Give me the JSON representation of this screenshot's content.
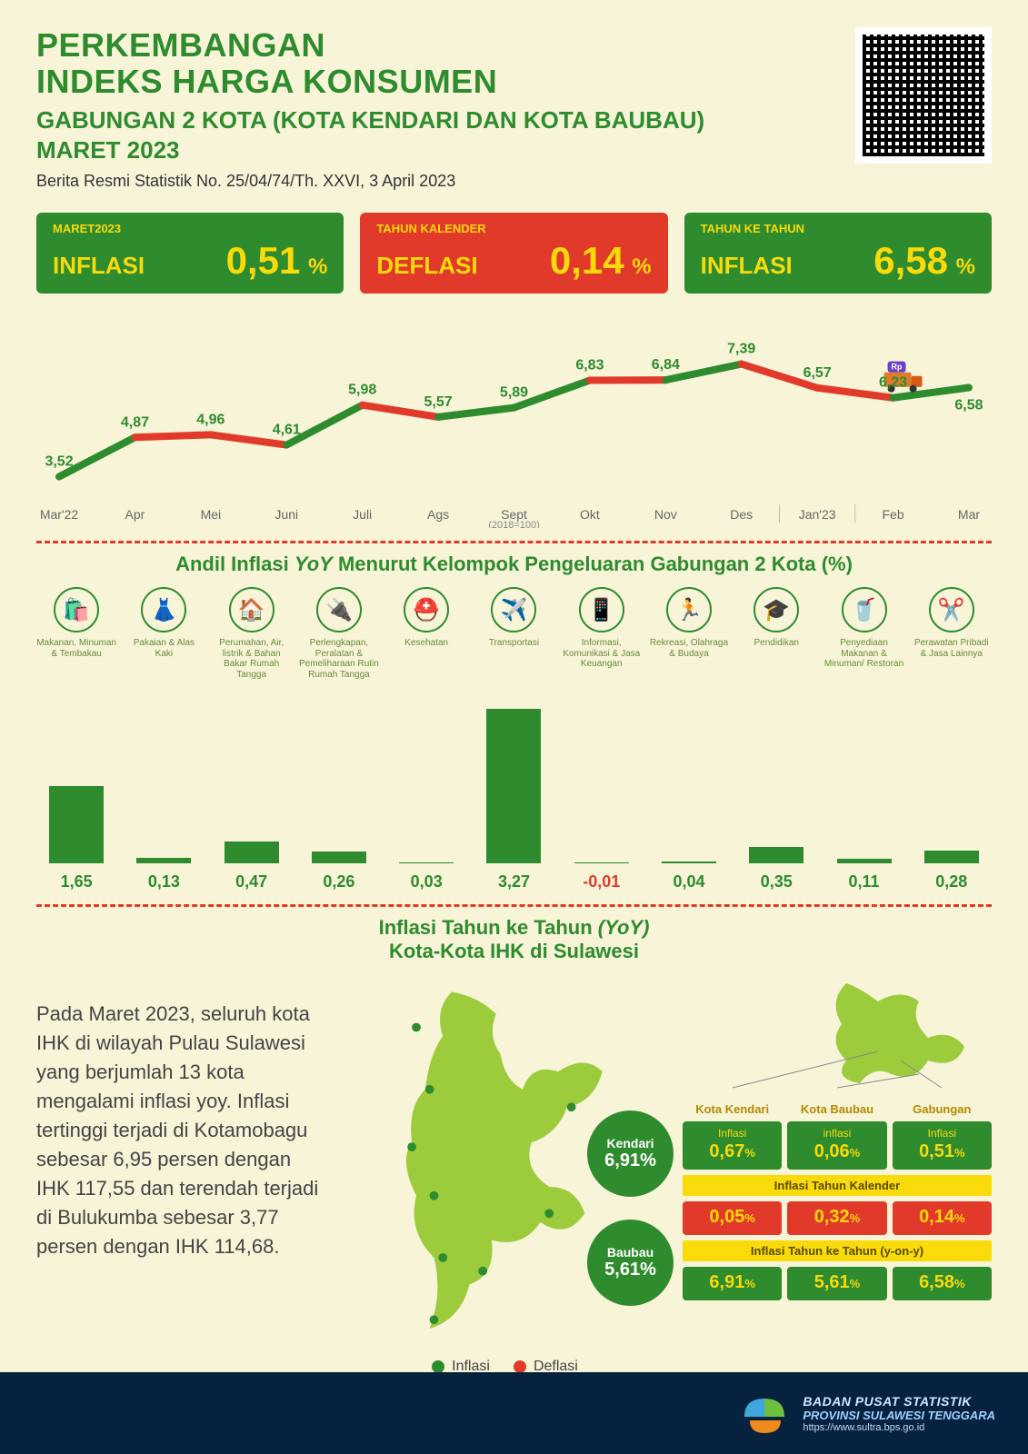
{
  "colors": {
    "bg": "#f7f4d8",
    "green": "#2e8b2e",
    "green_light": "#9ccc3c",
    "red": "#e23a2a",
    "yellow": "#f9da0a",
    "text_dark": "#333333",
    "footer_bg": "#07223f"
  },
  "header": {
    "line1": "PERKEMBANGAN",
    "line2": "INDEKS HARGA KONSUMEN",
    "line3": "GABUNGAN 2 KOTA (KOTA KENDARI DAN KOTA BAUBAU)",
    "line4": "MARET 2023",
    "sub": "Berita Resmi Statistik No. 25/04/74/Th. XXVI, 3 April 2023"
  },
  "pills": [
    {
      "top": "MARET2023",
      "word": "INFLASI",
      "value": "0,51",
      "pct": "%",
      "bg": "green"
    },
    {
      "top": "TAHUN KALENDER",
      "word": "DEFLASI",
      "value": "0,14",
      "pct": "%",
      "bg": "red"
    },
    {
      "top": "TAHUN KE TAHUN",
      "word": "INFLASI",
      "value": "6,58",
      "pct": "%",
      "bg": "green"
    }
  ],
  "line_chart": {
    "labels": [
      "Mar'22",
      "Apr",
      "Mei",
      "Juni",
      "Juli",
      "Ags",
      "Sept",
      "Okt",
      "Nov",
      "Des",
      "Jan'23",
      "Feb",
      "Mar"
    ],
    "values": [
      3.52,
      4.87,
      4.96,
      4.61,
      5.98,
      5.57,
      5.89,
      6.83,
      6.84,
      7.39,
      6.57,
      6.23,
      6.58
    ],
    "value_labels": [
      "3,52",
      "4,87",
      "4,96",
      "4,61",
      "5,98",
      "5,57",
      "5,89",
      "6,83",
      "6,84",
      "7,39",
      "6,57",
      "6,23",
      "6,58"
    ],
    "seg_color": [
      "green",
      "red",
      "red",
      "green",
      "red",
      "green",
      "green",
      "red",
      "green",
      "red",
      "red",
      "green"
    ],
    "base_note": "(2018=100)",
    "ylim": [
      3,
      8
    ],
    "truck_at_index": 11,
    "truck_label": "Rp"
  },
  "andil": {
    "title_pre": "Andil Inflasi ",
    "title_ital": "YoY",
    "title_post": " Menurut Kelompok Pengeluaran Gabungan 2 Kota (%)",
    "type": "bar",
    "ylim": [
      0,
      3.5
    ],
    "bar_height_per_unit": 52,
    "categories": [
      {
        "name": "Makanan, Minuman & Tembakau",
        "icon": "🛍️",
        "value": 1.65,
        "label": "1,65"
      },
      {
        "name": "Pakaian & Alas Kaki",
        "icon": "👗",
        "value": 0.13,
        "label": "0,13"
      },
      {
        "name": "Perumahan, Air, listrik & Bahan Bakar Rumah Tangga",
        "icon": "🏠",
        "value": 0.47,
        "label": "0,47"
      },
      {
        "name": "Perlengkapan, Peralatan & Pemeliharaan Rutin Rumah Tangga",
        "icon": "🔌",
        "value": 0.26,
        "label": "0,26"
      },
      {
        "name": "Kesehatan",
        "icon": "⛑️",
        "value": 0.03,
        "label": "0,03"
      },
      {
        "name": "Transportasi",
        "icon": "✈️",
        "value": 3.27,
        "label": "3,27"
      },
      {
        "name": "Informasi, Komunikasi & Jasa Keuangan",
        "icon": "📱",
        "value": -0.01,
        "label": "-0,01"
      },
      {
        "name": "Rekreasi, Olahraga & Budaya",
        "icon": "🏃",
        "value": 0.04,
        "label": "0,04"
      },
      {
        "name": "Pendidikan",
        "icon": "🎓",
        "value": 0.35,
        "label": "0,35"
      },
      {
        "name": "Penyediaan Makanan & Minuman/ Restoran",
        "icon": "🥤",
        "value": 0.11,
        "label": "0,11"
      },
      {
        "name": "Perawatan Pribadi & Jasa Lainnya",
        "icon": "✂️",
        "value": 0.28,
        "label": "0,28"
      }
    ]
  },
  "yoy": {
    "title_line1_pre": "Inflasi Tahun ke Tahun ",
    "title_line1_ital": "(YoY)",
    "title_line2": "Kota-Kota IHK di Sulawesi",
    "paragraph": "Pada Maret 2023, seluruh kota IHK di wilayah Pulau Sulawesi yang berjumlah 13 kota mengalami inflasi yoy. Inflasi tertinggi terjadi di Kotamobagu sebesar 6,95 persen dengan IHK 117,55 dan terendah terjadi di Bulukumba sebesar 3,77 persen dengan IHK 114,68.",
    "bubbles": [
      {
        "name": "Kendari",
        "value": "6,91%"
      },
      {
        "name": "Baubau",
        "value": "5,61%"
      }
    ],
    "legend": {
      "inflasi": "Inflasi",
      "deflasi": "Deflasi"
    },
    "grid": {
      "cols": [
        "Kota Kendari",
        "Kota Baubau",
        "Gabungan"
      ],
      "row1_label": [
        "Inflasi",
        "inflasi",
        "Inflasi"
      ],
      "row1": [
        "0,67%",
        "0,06%",
        "0,51%"
      ],
      "bar1": "Inflasi Tahun Kalender",
      "row2": [
        "0,05%",
        "0,32%",
        "0,14%"
      ],
      "bar2": "Inflasi Tahun ke Tahun (y-on-y)",
      "row3": [
        "6,91%",
        "5,61%",
        "6,58%"
      ]
    }
  },
  "footer": {
    "l1": "BADAN PUSAT STATISTIK",
    "l2": "PROVINSI SULAWESI TENGGARA",
    "l3": "https://www.sultra.bps.go.id"
  }
}
